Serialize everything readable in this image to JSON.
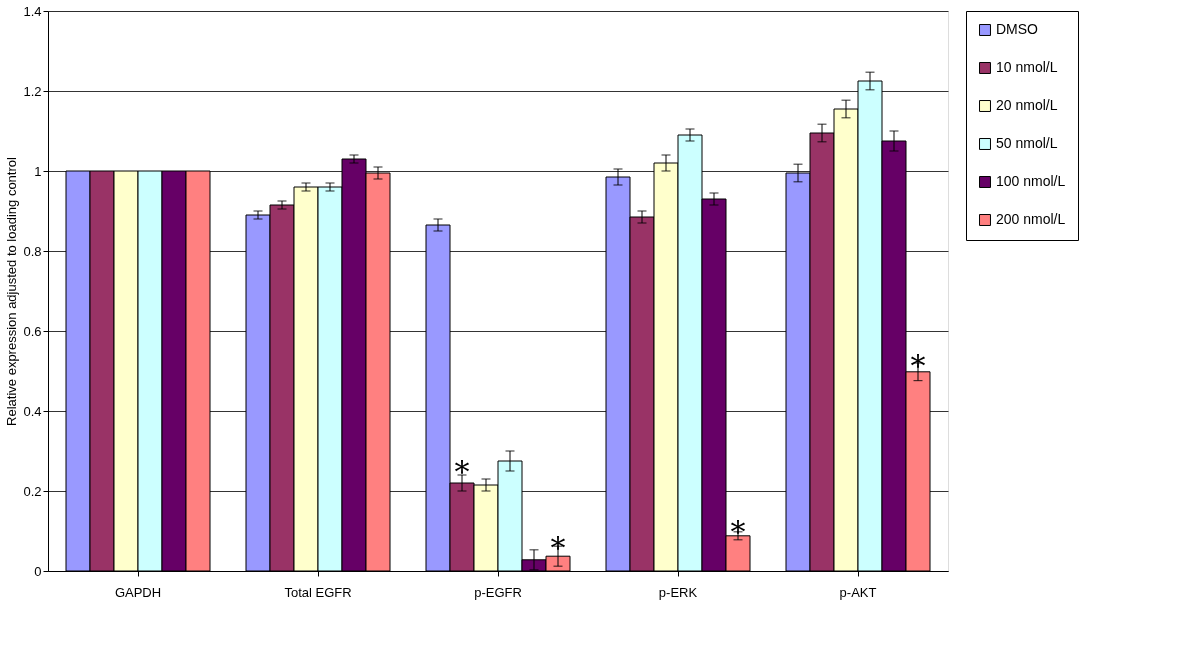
{
  "chart_data": {
    "type": "bar",
    "ylabel": "Relative expression adjusted to loading control",
    "categories": [
      "GAPDH",
      "Total EGFR",
      "p-EGFR",
      "p-ERK",
      "p-AKT"
    ],
    "series": [
      {
        "name": "DMSO",
        "color": "#9999ff",
        "values": [
          1.0,
          0.89,
          0.865,
          0.985,
          0.995
        ],
        "errors": [
          null,
          0.01,
          0.015,
          0.02,
          0.022
        ]
      },
      {
        "name": "10 nmol/L",
        "color": "#993366",
        "values": [
          1.0,
          0.915,
          0.22,
          0.885,
          1.095
        ],
        "errors": [
          null,
          0.01,
          0.02,
          0.015,
          0.022
        ]
      },
      {
        "name": "20 nmol/L",
        "color": "#ffffcc",
        "values": [
          1.0,
          0.96,
          0.215,
          1.02,
          1.155
        ],
        "errors": [
          null,
          0.01,
          0.015,
          0.02,
          0.022
        ]
      },
      {
        "name": "50 nmol/L",
        "color": "#ccffff",
        "values": [
          1.0,
          0.96,
          0.275,
          1.09,
          1.225
        ],
        "errors": [
          null,
          0.01,
          0.025,
          0.015,
          0.022
        ]
      },
      {
        "name": "100 nmol/L",
        "color": "#660066",
        "values": [
          1.0,
          1.03,
          0.028,
          0.93,
          1.075
        ],
        "errors": [
          null,
          0.01,
          0.025,
          0.015,
          0.025
        ]
      },
      {
        "name": "200 nmol/L",
        "color": "#ff8080",
        "values": [
          1.0,
          0.995,
          0.037,
          0.088,
          0.498
        ],
        "errors": [
          null,
          0.015,
          0.025,
          0.01,
          0.022
        ]
      }
    ],
    "annotations": [
      {
        "text": "*",
        "x": "p-EGFR",
        "y": 0.27
      },
      {
        "text": "*",
        "x": "p-EGFR",
        "y": 0.08
      },
      {
        "text": "*",
        "x": "p-ERK",
        "y": 0.12
      },
      {
        "text": "*",
        "x": "p-AKT",
        "y": 0.535
      }
    ],
    "ylim": [
      0,
      1.4
    ],
    "yticks": [
      0,
      0.2,
      0.4,
      0.6,
      0.8,
      1,
      1.2,
      1.4
    ],
    "grid": "y",
    "legend": "right"
  }
}
